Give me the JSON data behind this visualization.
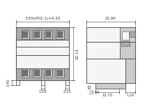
{
  "line_color": "#555555",
  "dim_color": "#444444",
  "fill_light": "#cccccc",
  "fill_mid": "#aaaaaa",
  "fill_dark": "#777777",
  "fill_white": "#f5f5f5",
  "annotation_color": "#333333",
  "dims": {
    "top_left": "3.50n(P/2-1)+4.30",
    "right_h": "22.14",
    "bottom_mid": "2.15",
    "bottom_left1": "3.40",
    "bottom_left2": "1.50",
    "top_right": "21.90",
    "bottom_right1": "0.60",
    "bottom_right2": "12.70",
    "bottom_right3": "1.20"
  }
}
